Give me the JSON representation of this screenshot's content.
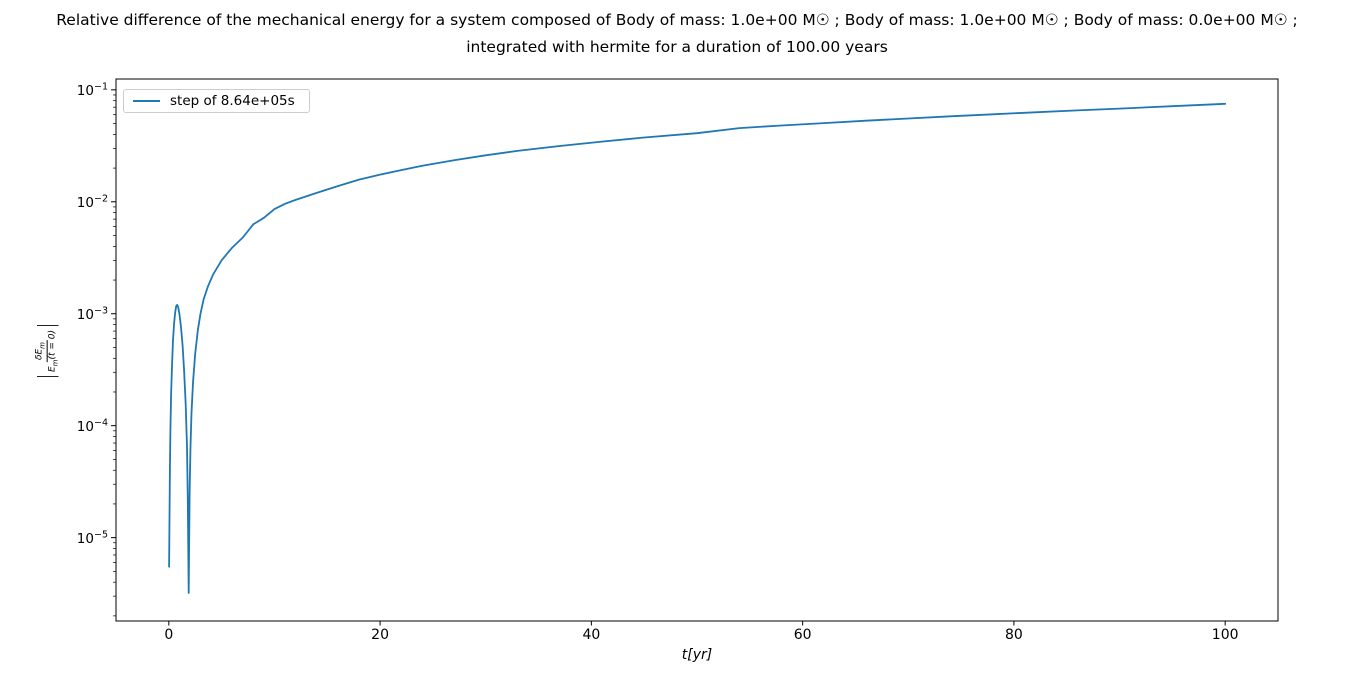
{
  "figure": {
    "title_line1": "Relative difference of the mechanical energy for a system composed of Body of mass: 1.0e+00 M☉ ; Body of mass: 1.0e+00 M☉ ; Body of mass: 0.0e+00 M☉ ;",
    "title_line2": "integrated with hermite for a duration of 100.00 years"
  },
  "legend": {
    "label": "step of 8.64e+05s"
  },
  "axes": {
    "xlabel": "t[yr]",
    "ylabel": {
      "bar_left": "|",
      "num_base": "δE",
      "num_sub": "m",
      "den_base": "E",
      "den_sub": "m",
      "den_tail": "(t = 0)",
      "bar_right": "|"
    },
    "xticks": [
      0,
      20,
      40,
      60,
      80,
      100
    ],
    "ytick_exponents": [
      -1,
      -2,
      -3,
      -4,
      -5
    ]
  },
  "colors": {
    "line": "#1f77b4",
    "legend_border": "#cccccc",
    "spine": "#000000",
    "text": "#000000",
    "background": "#ffffff"
  },
  "chart_data": {
    "type": "line",
    "title": "Relative difference of the mechanical energy for a system composed of Body of mass: 1.0e+00 M☉ ; Body of mass: 1.0e+00 M☉ ; Body of mass: 0.0e+00 M☉ ; integrated with hermite for a duration of 100.00 years",
    "xlabel": "t[yr]",
    "ylabel": "|δE_m / E_m(t=0)|",
    "xlim": [
      -5,
      105
    ],
    "ylim": [
      1.8e-06,
      0.125
    ],
    "yscale": "log",
    "grid": false,
    "legend_position": "upper left",
    "series": [
      {
        "name": "step of 8.64e+05s",
        "color": "#1f77b4",
        "points": [
          [
            0.03,
            5.5e-06
          ],
          [
            0.06,
            1.5e-05
          ],
          [
            0.1,
            4e-05
          ],
          [
            0.15,
            9e-05
          ],
          [
            0.22,
            0.00019
          ],
          [
            0.3,
            0.00034
          ],
          [
            0.4,
            0.00058
          ],
          [
            0.5,
            0.00082
          ],
          [
            0.6,
            0.00103
          ],
          [
            0.7,
            0.00117
          ],
          [
            0.78,
            0.0012
          ],
          [
            0.88,
            0.00115
          ],
          [
            1.0,
            0.001
          ],
          [
            1.15,
            0.00076
          ],
          [
            1.3,
            0.00052
          ],
          [
            1.45,
            0.00031
          ],
          [
            1.6,
            0.000155
          ],
          [
            1.72,
            6.5e-05
          ],
          [
            1.8,
            2.2e-05
          ],
          [
            1.85,
            6e-06
          ],
          [
            1.88,
            3.2e-06
          ],
          [
            1.92,
            8e-06
          ],
          [
            1.98,
            2.8e-05
          ],
          [
            2.05,
            6.5e-05
          ],
          [
            2.15,
            0.00013
          ],
          [
            2.3,
            0.00025
          ],
          [
            2.5,
            0.00044
          ],
          [
            2.75,
            0.00072
          ],
          [
            3.0,
            0.001
          ],
          [
            3.3,
            0.00135
          ],
          [
            3.7,
            0.00175
          ],
          [
            4.2,
            0.00225
          ],
          [
            5.0,
            0.003
          ],
          [
            6.0,
            0.0039
          ],
          [
            7.0,
            0.0048
          ],
          [
            8.0,
            0.0063
          ],
          [
            9.0,
            0.0072
          ],
          [
            10.0,
            0.0086
          ],
          [
            11.0,
            0.0096
          ],
          [
            12.0,
            0.0104
          ],
          [
            14.0,
            0.012
          ],
          [
            16.0,
            0.0138
          ],
          [
            18.0,
            0.0158
          ],
          [
            20.0,
            0.0175
          ],
          [
            22.0,
            0.0192
          ],
          [
            24.0,
            0.021
          ],
          [
            27.0,
            0.0235
          ],
          [
            30.0,
            0.026
          ],
          [
            33.0,
            0.0285
          ],
          [
            37.0,
            0.0315
          ],
          [
            41.0,
            0.0345
          ],
          [
            45.0,
            0.0375
          ],
          [
            50.0,
            0.041
          ],
          [
            54.0,
            0.0455
          ],
          [
            58.0,
            0.048
          ],
          [
            62.0,
            0.0505
          ],
          [
            66.0,
            0.053
          ],
          [
            70.0,
            0.0555
          ],
          [
            74.0,
            0.058
          ],
          [
            78.0,
            0.0605
          ],
          [
            82.0,
            0.063
          ],
          [
            86.0,
            0.0655
          ],
          [
            90.0,
            0.068
          ],
          [
            95.0,
            0.0715
          ],
          [
            100.0,
            0.075
          ]
        ]
      }
    ]
  }
}
